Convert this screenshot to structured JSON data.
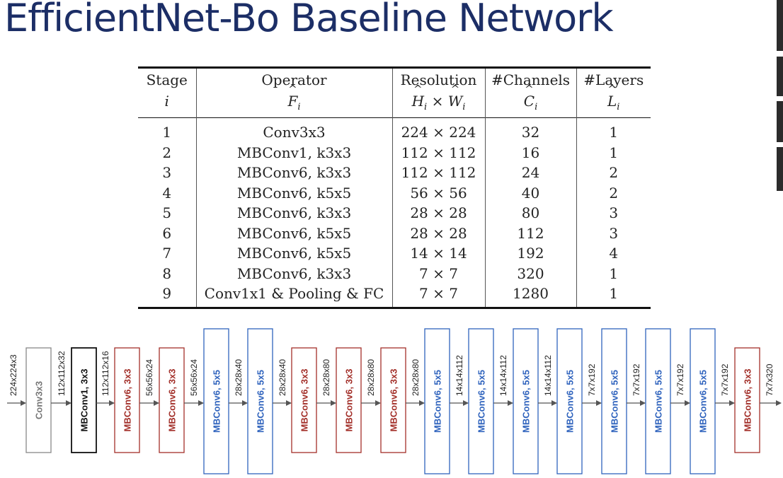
{
  "title": "EfficientNet-Bo Baseline Network",
  "table": {
    "headers": [
      {
        "label": "Stage",
        "sym": "i"
      },
      {
        "label": "Operator",
        "sym": "F",
        "sub": "i"
      },
      {
        "label": "Resolution",
        "sym": "H",
        "sub": "i",
        "times": "×",
        "sym2": "W",
        "sub2": "i"
      },
      {
        "label": "#Channels",
        "sym": "C",
        "sub": "i"
      },
      {
        "label": "#Layers",
        "sym": "L",
        "sub": "i"
      }
    ],
    "rows": [
      {
        "stage": "1",
        "operator": "Conv3x3",
        "resolution": "224 × 224",
        "channels": "32",
        "layers": "1"
      },
      {
        "stage": "2",
        "operator": "MBConv1, k3x3",
        "resolution": "112 × 112",
        "channels": "16",
        "layers": "1"
      },
      {
        "stage": "3",
        "operator": "MBConv6, k3x3",
        "resolution": "112 × 112",
        "channels": "24",
        "layers": "2"
      },
      {
        "stage": "4",
        "operator": "MBConv6, k5x5",
        "resolution": "56 × 56",
        "channels": "40",
        "layers": "2"
      },
      {
        "stage": "5",
        "operator": "MBConv6, k3x3",
        "resolution": "28 × 28",
        "channels": "80",
        "layers": "3"
      },
      {
        "stage": "6",
        "operator": "MBConv6, k5x5",
        "resolution": "28 × 28",
        "channels": "112",
        "layers": "3"
      },
      {
        "stage": "7",
        "operator": "MBConv6, k5x5",
        "resolution": "14 × 14",
        "channels": "192",
        "layers": "4"
      },
      {
        "stage": "8",
        "operator": "MBConv6, k3x3",
        "resolution": "7 × 7",
        "channels": "320",
        "layers": "1"
      },
      {
        "stage": "9",
        "operator": "Conv1x1 & Pooling & FC",
        "resolution": "7 × 7",
        "channels": "1280",
        "layers": "1"
      }
    ]
  },
  "diagram": {
    "input_label": "224x224x3",
    "blocks": [
      {
        "label": "Conv3x3",
        "kind": "conv",
        "out": "112x112x32"
      },
      {
        "label": "MBConv1, 3x3",
        "kind": "mb1",
        "out": "112x112x16"
      },
      {
        "label": "MBConv6, 3x3",
        "kind": "k3",
        "out": "56x56x24"
      },
      {
        "label": "MBConv6, 3x3",
        "kind": "k3",
        "out": "56x56x24"
      },
      {
        "label": "MBConv6, 5x5",
        "kind": "k5",
        "out": "28x28x40"
      },
      {
        "label": "MBConv6, 5x5",
        "kind": "k5",
        "out": "28x28x40"
      },
      {
        "label": "MBConv6, 3x3",
        "kind": "k3",
        "out": "28x28x80"
      },
      {
        "label": "MBConv6, 3x3",
        "kind": "k3",
        "out": "28x28x80"
      },
      {
        "label": "MBConv6, 3x3",
        "kind": "k3",
        "out": "28x28x80"
      },
      {
        "label": "MBConv6, 5x5",
        "kind": "k5",
        "out": "14x14x112"
      },
      {
        "label": "MBConv6, 5x5",
        "kind": "k5",
        "out": "14x14x112"
      },
      {
        "label": "MBConv6, 5x5",
        "kind": "k5",
        "out": "14x14x112"
      },
      {
        "label": "MBConv6, 5x5",
        "kind": "k5",
        "out": "7x7x192"
      },
      {
        "label": "MBConv6, 5x5",
        "kind": "k5",
        "out": "7x7x192"
      },
      {
        "label": "MBConv6, 5x5",
        "kind": "k5",
        "out": "7x7x192"
      },
      {
        "label": "MBConv6, 5x5",
        "kind": "k5",
        "out": "7x7x192"
      },
      {
        "label": "MBConv6, 3x3",
        "kind": "k3",
        "out": "7x7x320"
      }
    ],
    "colors": {
      "title": "#1c2e66",
      "conv_border": "#888888",
      "conv_text": "#777777",
      "mb1_border": "#111111",
      "mb1_text": "#111111",
      "k3_border": "#a3302a",
      "k3_text": "#a3302a",
      "k5_border": "#2f63bd",
      "k5_text": "#2f63bd",
      "arrow": "#555555",
      "dim_text": "#222222"
    }
  }
}
